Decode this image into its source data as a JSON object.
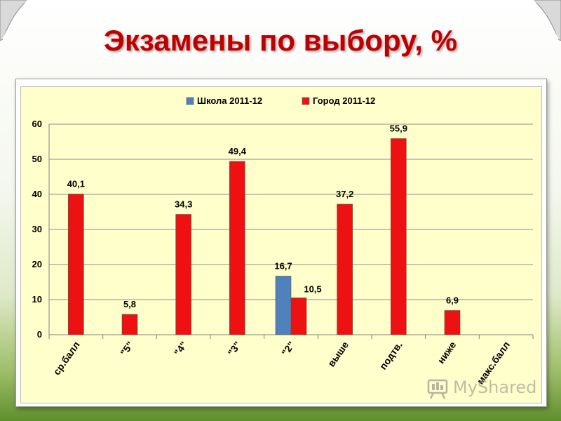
{
  "slide": {
    "title": "Экзамены по выбору, %"
  },
  "watermark": {
    "text": "MyShared"
  },
  "chart_data": {
    "type": "bar",
    "categories": [
      "ср.балл",
      "\"5\"",
      "\"4\"",
      "\"3\"",
      "\"2\"",
      "выше",
      "подтв.",
      "ниже",
      "макс.балл"
    ],
    "series": [
      {
        "name": "Школа 2011-12",
        "color": "#4f81bd",
        "values": [
          null,
          null,
          null,
          null,
          16.7,
          null,
          null,
          null,
          null
        ]
      },
      {
        "name": "Город 2011-12",
        "color": "#ee1111",
        "values": [
          40.1,
          5.8,
          34.3,
          49.4,
          10.5,
          37.2,
          55.9,
          6.9,
          null
        ]
      }
    ],
    "data_labels": {
      "Школа 2011-12": [
        null,
        null,
        null,
        null,
        "16,7",
        null,
        null,
        null,
        null
      ],
      "Город 2011-12": [
        "40,1",
        "5,8",
        "34,3",
        "49,4",
        "10,5",
        "37,2",
        "55,9",
        "6,9",
        null
      ]
    },
    "ylim": [
      0,
      60
    ],
    "yticks": [
      "0",
      "10",
      "20",
      "30",
      "40",
      "50",
      "60"
    ],
    "ytick_values": [
      0,
      10,
      20,
      30,
      40,
      50,
      60
    ],
    "grid": true,
    "legend_position": "top",
    "xlabel": "",
    "ylabel": ""
  }
}
